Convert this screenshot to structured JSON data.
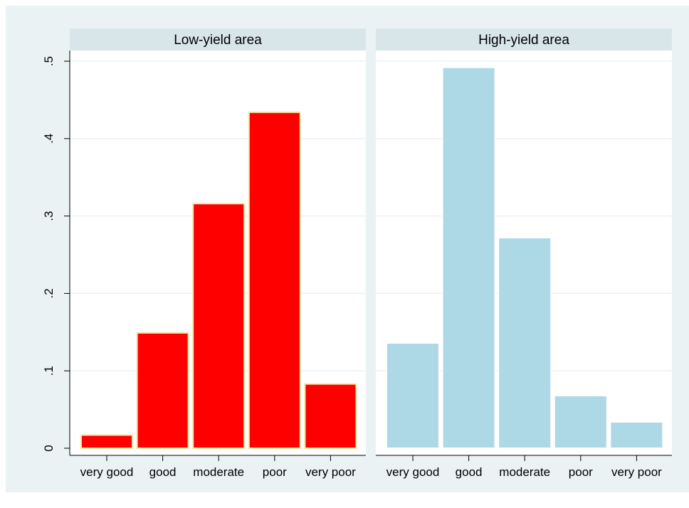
{
  "chart_data": [
    {
      "type": "bar",
      "title": "Low-yield area",
      "categories": [
        "very good",
        "good",
        "moderate",
        "poor",
        "very poor"
      ],
      "values": [
        0.017,
        0.149,
        0.316,
        0.434,
        0.083
      ],
      "ylim": [
        0,
        0.5
      ],
      "yticks": [
        0,
        0.1,
        0.2,
        0.3,
        0.4,
        0.5
      ],
      "ytick_labels": [
        "0",
        ".1",
        ".2",
        ".3",
        ".4",
        ".5"
      ],
      "grid": true,
      "bar_color": "#ff0000",
      "bar_edge_color": "#f5e6a8"
    },
    {
      "type": "bar",
      "title": "High-yield area",
      "categories": [
        "very good",
        "good",
        "moderate",
        "poor",
        "very poor"
      ],
      "values": [
        0.136,
        0.492,
        0.272,
        0.068,
        0.034
      ],
      "ylim": [
        0,
        0.5
      ],
      "grid": true,
      "bar_color": "#add8e6",
      "bar_edge_color": "#ffffff"
    }
  ],
  "colors": {
    "background": "#eaf2f3",
    "plot_background": "#ffffff",
    "title_strip": "#d8e6ea",
    "gridline": "#eaf2f3",
    "axis": "#000000"
  }
}
